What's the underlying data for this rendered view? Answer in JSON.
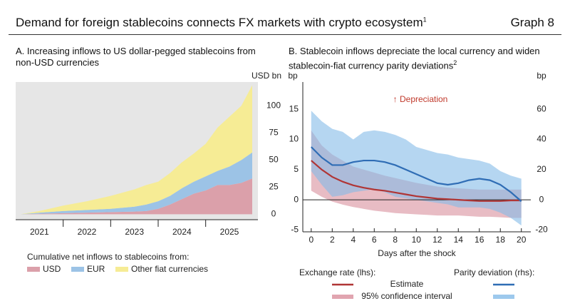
{
  "header": {
    "title": "Demand for foreign stablecoins connects FX markets with crypto ecosystem",
    "title_note": "1",
    "graph_label": "Graph 8"
  },
  "chart_data": [
    {
      "type": "stacked_area",
      "title": "A. Increasing inflows to US dollar-pegged stablecoins from non-USD currencies",
      "ylabel": "USD bn",
      "x": [
        2021.1,
        2021.5,
        2022,
        2022.5,
        2023,
        2023.5,
        2023.75,
        2024,
        2024.25,
        2024.5,
        2024.75,
        2025,
        2025.25,
        2025.5,
        2025.75,
        2025.98
      ],
      "xlim": [
        2021.0,
        2026.1
      ],
      "xticks": [
        {
          "value": 2021.5,
          "label": "2021"
        },
        {
          "value": 2022.5,
          "label": "2022"
        },
        {
          "value": 2023.5,
          "label": "2023"
        },
        {
          "value": 2024.5,
          "label": "2024"
        },
        {
          "value": 2025.5,
          "label": "2025"
        }
      ],
      "xtick_marks": [
        2022,
        2023,
        2024,
        2025
      ],
      "ylim": [
        -5,
        122
      ],
      "yticks": [
        0,
        25,
        50,
        75,
        100
      ],
      "legend_title": "Cumulative net inflows to stablecoins from:",
      "background": "#e6e6e6",
      "series": [
        {
          "name": "USD",
          "color": "#dba0aa",
          "values": [
            0,
            0.5,
            1,
            1.5,
            2,
            2.5,
            3,
            5,
            9,
            14,
            19,
            22,
            27,
            27,
            29,
            33
          ]
        },
        {
          "name": "EUR",
          "color": "#9cc3e6",
          "values": [
            0,
            1,
            2,
            2.5,
            3,
            4.5,
            6,
            7,
            8,
            10,
            11,
            13,
            13,
            17,
            21,
            24
          ]
        },
        {
          "name": "Other fiat currencies",
          "color": "#f6ec95",
          "values": [
            0,
            1.5,
            5,
            8,
            12,
            16,
            18,
            18,
            21,
            24,
            26,
            30,
            40,
            46,
            50,
            62
          ]
        }
      ]
    },
    {
      "type": "line_band",
      "title": "B. Stablecoin inflows depreciate the local currency and widen stablecoin-fiat currency parity deviations",
      "title_note": "2",
      "ylabel": "bp",
      "y2label": "bp",
      "xlabel": "Days after the shock",
      "annotation": "↑ Depreciation",
      "annotation_color": "#c0392b",
      "x": [
        0,
        1,
        2,
        3,
        4,
        5,
        6,
        7,
        8,
        9,
        10,
        11,
        12,
        13,
        14,
        15,
        16,
        17,
        18,
        19,
        20
      ],
      "xlim": [
        -0.8,
        20.9
      ],
      "xticks": [
        0,
        2,
        4,
        6,
        8,
        10,
        12,
        14,
        16,
        18,
        20
      ],
      "ylim": [
        -5.3,
        19.5
      ],
      "yticks": [
        -5,
        0,
        5,
        10,
        15
      ],
      "y2lim": [
        -21.2,
        78
      ],
      "y2ticks": [
        -20,
        0,
        20,
        40,
        60
      ],
      "legend_rows": [
        "Estimate",
        "95% confidence interval"
      ],
      "series": [
        {
          "name": "Exchange rate (lhs):",
          "axis": "y",
          "color": "#b03535",
          "band_color": "#d98f9c",
          "values": [
            6.5,
            5,
            3.8,
            3,
            2.4,
            2,
            1.7,
            1.5,
            1.2,
            0.9,
            0.6,
            0.4,
            0.2,
            0.1,
            0,
            -0.1,
            -0.2,
            -0.2,
            -0.2,
            -0.1,
            -0.1
          ],
          "ci_upper": [
            11.5,
            9,
            7.5,
            6.5,
            5.5,
            5,
            4.5,
            4,
            3.6,
            3.2,
            2.8,
            2.5,
            2.2,
            2,
            1.9,
            1.8,
            1.7,
            1.7,
            1.7,
            1.7,
            1.7
          ],
          "ci_lower": [
            1.5,
            0.5,
            -0.3,
            -0.8,
            -1.2,
            -1.5,
            -1.8,
            -2,
            -2.2,
            -2.3,
            -2.4,
            -2.5,
            -2.6,
            -2.6,
            -2.6,
            -2.7,
            -2.8,
            -2.8,
            -2.9,
            -3,
            -3
          ]
        },
        {
          "name": "Parity deviation (rhs):",
          "axis": "y2",
          "color": "#2f6db5",
          "band_color": "#84bbe8",
          "values": [
            35,
            28,
            23,
            23,
            25,
            26,
            26,
            25,
            23,
            20,
            17,
            14,
            11,
            10,
            11,
            13,
            14,
            13,
            10,
            5,
            -1
          ],
          "ci_upper": [
            59,
            52,
            47,
            45,
            40,
            45,
            46,
            45,
            43,
            40,
            35,
            33,
            31,
            30,
            28,
            27,
            26,
            24,
            19,
            16,
            14
          ],
          "ci_lower": [
            19,
            10,
            2,
            3,
            5,
            6,
            7,
            5,
            2,
            1,
            0,
            -1,
            -2,
            -3,
            -5,
            -5,
            -5,
            -6,
            -8.5,
            -12,
            -17
          ]
        }
      ]
    }
  ]
}
